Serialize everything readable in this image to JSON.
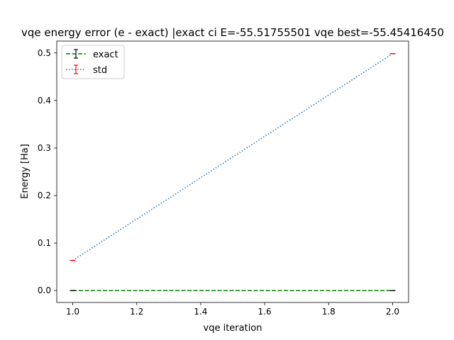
{
  "chart_data": {
    "type": "line",
    "title": "vqe energy error (e - exact) |exact ci E=-55.51755501 vqe best=-55.45416450",
    "xlabel": "vqe iteration",
    "ylabel": "Energy [Ha]",
    "xlim": [
      0.95,
      2.05
    ],
    "ylim": [
      -0.025,
      0.525
    ],
    "x_ticks": [
      1.0,
      1.2,
      1.4,
      1.6,
      1.8,
      2.0
    ],
    "x_tick_labels": [
      "1.0",
      "1.2",
      "1.4",
      "1.6",
      "1.8",
      "2.0"
    ],
    "y_ticks": [
      0.0,
      0.1,
      0.2,
      0.3,
      0.4,
      0.5
    ],
    "y_tick_labels": [
      "0.0",
      "0.1",
      "0.2",
      "0.3",
      "0.4",
      "0.5"
    ],
    "grid": false,
    "legend_position": "top-left",
    "series": [
      {
        "name": "exact",
        "color": "#008000",
        "errorbar_color": "#000000",
        "line_style": "dashed",
        "x": [
          1.0,
          2.0
        ],
        "y": [
          0.0,
          0.0
        ],
        "yerr": [
          0.0,
          0.0
        ]
      },
      {
        "name": "std",
        "color": "#1f77b4",
        "errorbar_color": "#ff0000",
        "line_style": "dotted",
        "x": [
          1.0,
          2.0
        ],
        "y": [
          0.0634,
          0.4985
        ],
        "yerr": [
          0.0,
          0.0
        ]
      }
    ]
  }
}
